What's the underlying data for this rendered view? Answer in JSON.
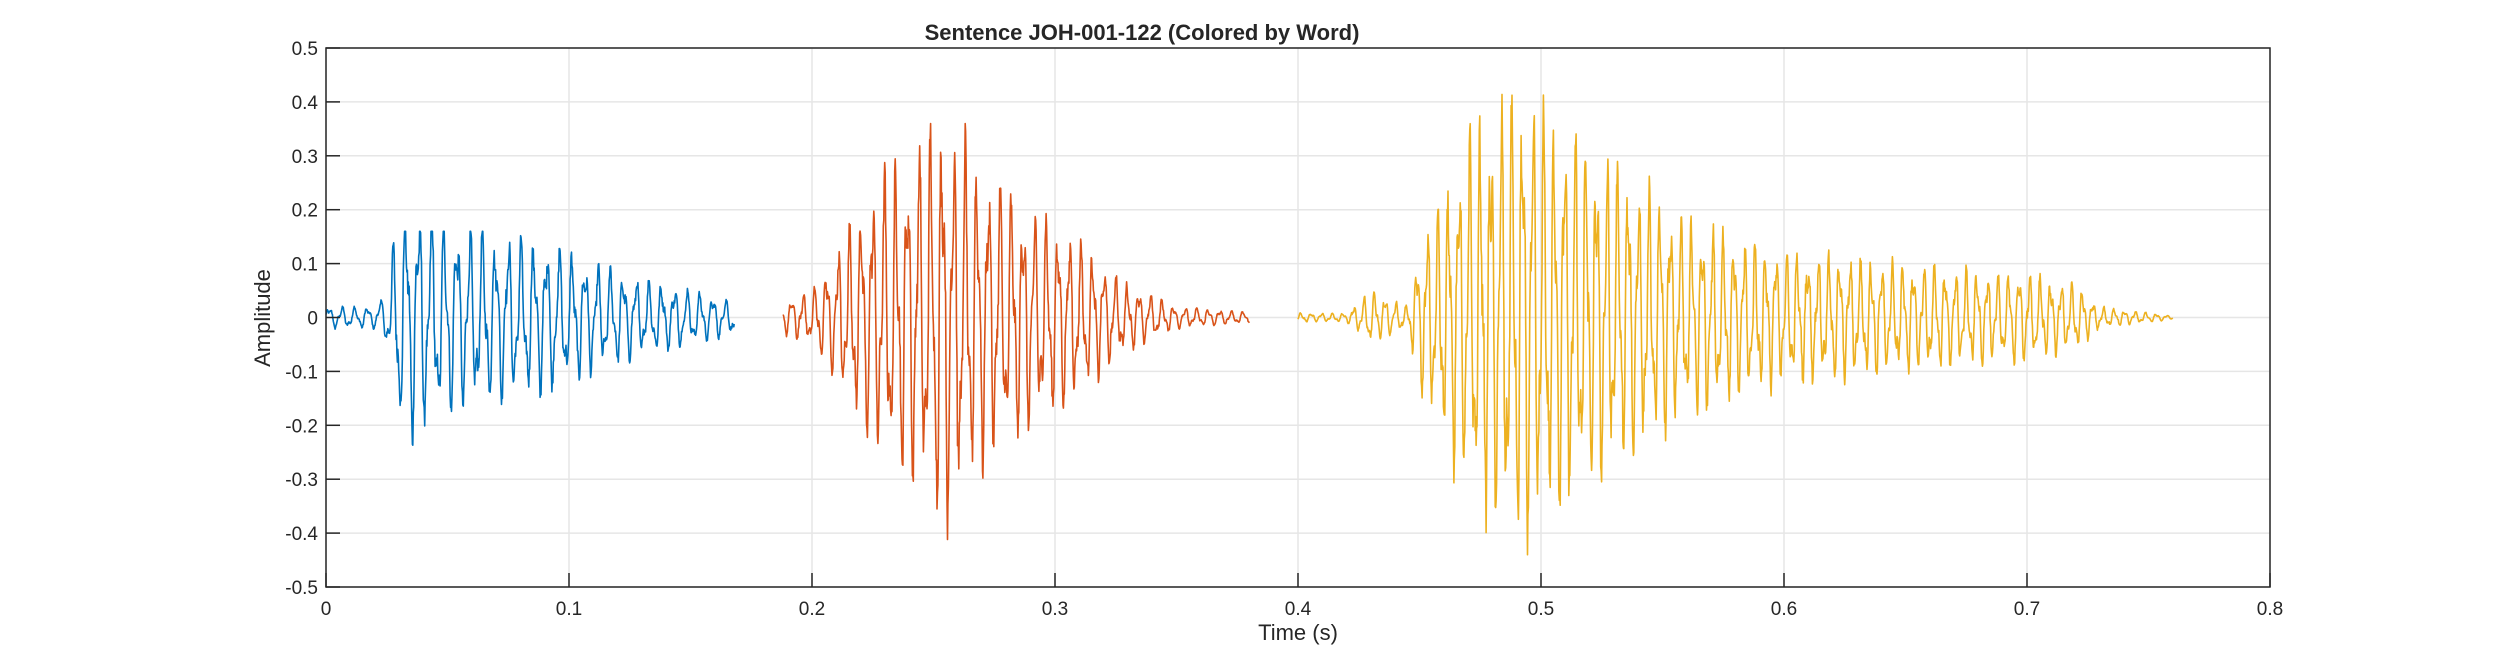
{
  "chart_data": {
    "type": "line",
    "title": "Sentence JOH-001-122 (Colored by Word)",
    "xlabel": "Time (s)",
    "ylabel": "Amplitude",
    "xlim": [
      0,
      0.8
    ],
    "ylim": [
      -0.5,
      0.5
    ],
    "xticks": [
      0,
      0.1,
      0.2,
      0.3,
      0.4,
      0.5,
      0.6,
      0.7,
      0.8
    ],
    "xtick_labels": [
      "0",
      "0.1",
      "0.2",
      "0.3",
      "0.4",
      "0.5",
      "0.6",
      "0.7",
      "0.8"
    ],
    "yticks": [
      -0.5,
      -0.4,
      -0.3,
      -0.2,
      -0.1,
      0,
      0.1,
      0.2,
      0.3,
      0.4,
      0.5
    ],
    "ytick_labels": [
      "-0.5",
      "-0.4",
      "-0.3",
      "-0.2",
      "-0.1",
      "0",
      "0.1",
      "0.2",
      "0.3",
      "0.4",
      "0.5"
    ],
    "grid": true,
    "legend": "none",
    "series": [
      {
        "color": "#0072BD",
        "t_start": 0.0,
        "t_end": 0.168,
        "envelope": [
          [
            0.0,
            0.02
          ],
          [
            0.02,
            0.02
          ],
          [
            0.025,
            0.05
          ],
          [
            0.03,
            0.2
          ],
          [
            0.035,
            0.22
          ],
          [
            0.05,
            0.18
          ],
          [
            0.07,
            0.15
          ],
          [
            0.09,
            0.14
          ],
          [
            0.11,
            0.1
          ],
          [
            0.13,
            0.07
          ],
          [
            0.15,
            0.05
          ],
          [
            0.168,
            0.03
          ]
        ],
        "peak_max": 0.16,
        "peak_min": -0.24
      },
      {
        "color": "#D95319",
        "t_start": 0.188,
        "t_end": 0.38,
        "envelope": [
          [
            0.188,
            0.03
          ],
          [
            0.2,
            0.05
          ],
          [
            0.21,
            0.12
          ],
          [
            0.225,
            0.24
          ],
          [
            0.24,
            0.3
          ],
          [
            0.255,
            0.38
          ],
          [
            0.27,
            0.27
          ],
          [
            0.29,
            0.2
          ],
          [
            0.31,
            0.14
          ],
          [
            0.33,
            0.06
          ],
          [
            0.35,
            0.02
          ],
          [
            0.38,
            0.01
          ]
        ],
        "peak_max": 0.36,
        "peak_min": -0.43
      },
      {
        "color": "#EDB120",
        "t_start": 0.4,
        "t_end": 0.76,
        "envelope": [
          [
            0.4,
            0.008
          ],
          [
            0.42,
            0.008
          ],
          [
            0.43,
            0.05
          ],
          [
            0.445,
            0.02
          ],
          [
            0.45,
            0.13
          ],
          [
            0.47,
            0.33
          ],
          [
            0.49,
            0.42
          ],
          [
            0.51,
            0.35
          ],
          [
            0.53,
            0.28
          ],
          [
            0.56,
            0.18
          ],
          [
            0.6,
            0.12
          ],
          [
            0.65,
            0.1
          ],
          [
            0.7,
            0.08
          ],
          [
            0.72,
            0.06
          ],
          [
            0.73,
            0.02
          ],
          [
            0.76,
            0.003
          ]
        ],
        "peak_max": 0.45,
        "peak_min": -0.44
      }
    ]
  }
}
